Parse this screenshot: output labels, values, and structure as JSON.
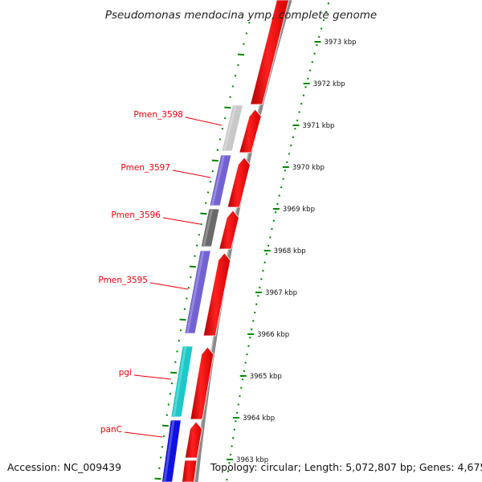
{
  "title": "Pseudomonas mendocina ymp, complete genome",
  "footer": {
    "accession": "Accession: NC_009439",
    "summary": "Topology: circular; Length: 5,072,807 bp; Genes: 4,675"
  },
  "scale": {
    "unit": "kbp",
    "ticks": [
      "3973 kbp",
      "3972 kbp",
      "3971 kbp",
      "3970 kbp",
      "3969 kbp",
      "3968 kbp",
      "3967 kbp",
      "3966 kbp",
      "3965 kbp",
      "3964 kbp",
      "3963 kbp"
    ]
  },
  "genes": [
    {
      "label": "Pmen_3598",
      "color": "#c8c8c8"
    },
    {
      "label": "Pmen_3597",
      "color": "#7262d2"
    },
    {
      "label": "Pmen_3596",
      "color": "#6a6a6a"
    },
    {
      "label": "Pmen_3595",
      "color": "#7262d2"
    },
    {
      "label": "pgi",
      "color": "#1ec8c8"
    },
    {
      "label": "panC",
      "color": "#1010e0"
    }
  ],
  "colors": {
    "forward_strand": "#ff0000",
    "tick_green": "#008800",
    "backbone": "#8a8a8a",
    "label_red": "#e8000b"
  }
}
